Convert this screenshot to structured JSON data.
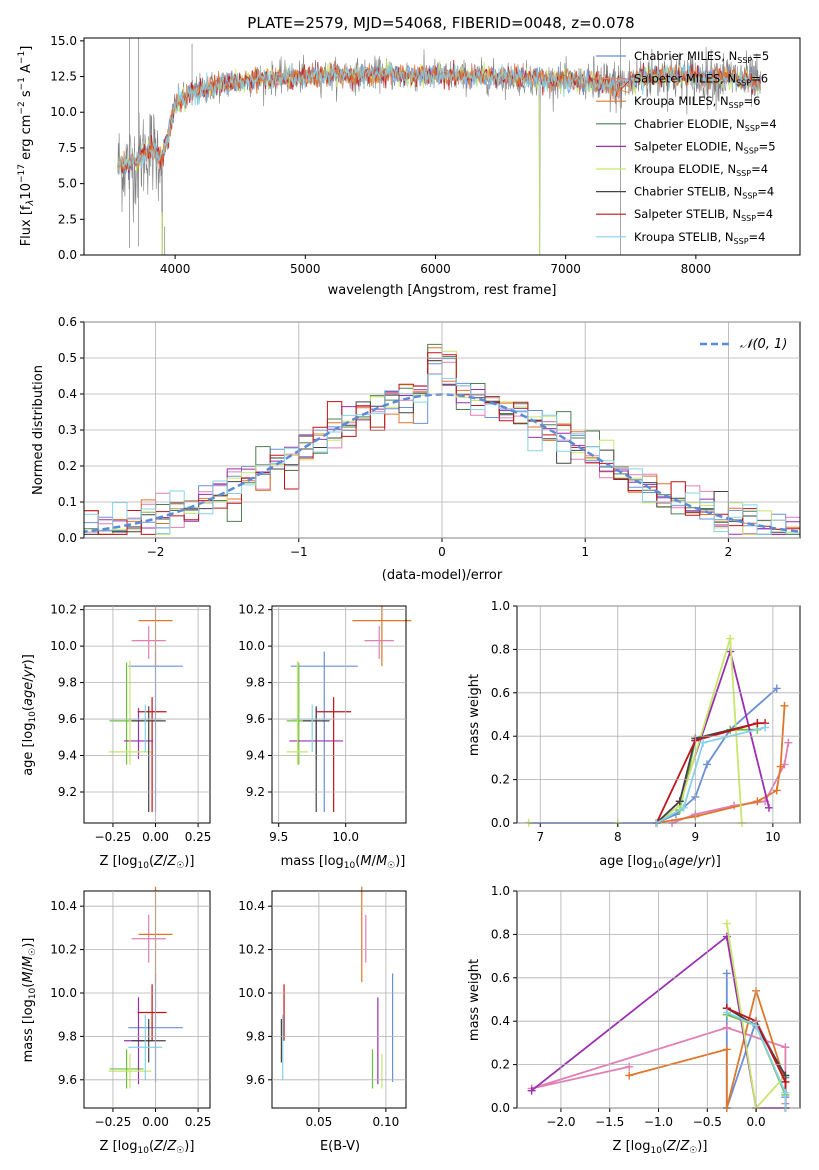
{
  "title": "PLATE=2579, MJD=54068, FIBERID=0048, z=0.078",
  "colors": {
    "chabrier_miles": "#6a8fd8",
    "salpeter_miles": "#e07f6a",
    "kroupa_miles": "#e0762a",
    "chabrier_elodie": "#4f7f52",
    "salpeter_elodie": "#9a2fb0",
    "kroupa_elodie": "#c8e66b",
    "chabrier_stelib": "#444444",
    "salpeter_stelib": "#c0141a",
    "kroupa_stelib": "#86d2e8",
    "pink": "#e07fb6",
    "green": "#6bbf3e",
    "data": "#7f7f7f",
    "gauss": "#5b8ad6",
    "grid": "#b0b0b0"
  },
  "chart_data": [
    {
      "id": "spectrum",
      "type": "line",
      "title": "PLATE=2579, MJD=54068, FIBERID=0048, z=0.078",
      "xlabel": "wavelength [Angstrom, rest frame]",
      "ylabel": "Flux [f_λ 10^-17 erg cm^-2 s^-1 A^-1]",
      "xlim": [
        3300,
        8800
      ],
      "ylim": [
        0,
        15.2
      ],
      "xticks": [
        "4000",
        "5000",
        "6000",
        "7000",
        "8000"
      ],
      "yticks": [
        "0.0",
        "2.5",
        "5.0",
        "7.5",
        "10.0",
        "12.5",
        "15.0"
      ],
      "grid": false,
      "legend_position": "right",
      "legend": [
        "Chabrier MILES, N_SSP=5",
        "Salpeter MILES, N_SSP=6",
        "Kroupa MILES, N_SSP=6",
        "Chabrier ELODIE, N_SSP=4",
        "Salpeter ELODIE, N_SSP=5",
        "Kroupa ELODIE, N_SSP=4",
        "Chabrier STELIB, N_SSP=4",
        "Salpeter STELIB, N_SSP=4",
        "Kroupa STELIB, N_SSP=4"
      ],
      "model_continuum": {
        "x": [
          3600,
          3700,
          3800,
          3900,
          3950,
          4000,
          4100,
          4200,
          4400,
          4600,
          4800,
          5000,
          5200,
          5400,
          5600,
          5800,
          6000,
          6200,
          6400,
          6600,
          6800,
          7000,
          7200,
          7400,
          7600,
          7800,
          8000,
          8200,
          8400,
          8500
        ],
        "y": [
          6.3,
          6.5,
          7.5,
          6.8,
          8.5,
          10.5,
          11.2,
          11.6,
          12.0,
          12.3,
          12.4,
          12.5,
          12.6,
          12.6,
          12.7,
          12.6,
          12.6,
          12.5,
          12.5,
          12.4,
          12.3,
          12.2,
          12.1,
          11.8,
          12.5,
          12.6,
          12.4,
          12.5,
          12.2,
          11.9
        ]
      }
    },
    {
      "id": "residuals",
      "type": "step",
      "xlabel": "(data-model)/error",
      "ylabel": "Normed distribution",
      "xlim": [
        -2.5,
        2.5
      ],
      "ylim": [
        0,
        0.6
      ],
      "xticks": [
        "−2",
        "−1",
        "0",
        "1",
        "2"
      ],
      "yticks": [
        "0.0",
        "0.1",
        "0.2",
        "0.3",
        "0.4",
        "0.5",
        "0.6"
      ],
      "grid": true,
      "legend": [
        "𝒩(0, 1)"
      ],
      "bin_width": 0.1
    },
    {
      "id": "age_vs_Z",
      "type": "errorbar",
      "xlabel": "Z [log10(Z/Z⊙)]",
      "ylabel": "age [log10(age/yr)]",
      "xticks": [
        "−0.25",
        "0.00",
        "0.25"
      ],
      "yticks": [
        "9.2",
        "9.4",
        "9.6",
        "9.8",
        "10.0",
        "10.2"
      ],
      "grid": true
    },
    {
      "id": "age_vs_mass",
      "type": "errorbar",
      "xlabel": "mass [log10(M/M⊙)]",
      "xticks": [
        "9.5",
        "10.0"
      ],
      "yticks": [
        "9.2",
        "9.4",
        "9.6",
        "9.8",
        "10.0",
        "10.2"
      ],
      "grid": true
    },
    {
      "id": "weight_vs_age",
      "type": "line",
      "xlabel": "age [log10(age/yr)]",
      "ylabel": "mass weight",
      "xlim": [
        6.7,
        10.35
      ],
      "ylim": [
        0,
        1
      ],
      "xticks": [
        "7",
        "8",
        "9",
        "10"
      ],
      "yticks": [
        "0.0",
        "0.2",
        "0.4",
        "0.6",
        "0.8",
        "1.0"
      ],
      "grid": true
    },
    {
      "id": "mass_vs_Z",
      "type": "errorbar",
      "xlabel": "Z [log10(Z/Z⊙)]",
      "ylabel": "mass [log10(M/M⊙)]",
      "xticks": [
        "−0.25",
        "0.00",
        "0.25"
      ],
      "yticks": [
        "9.6",
        "9.8",
        "10.0",
        "10.2",
        "10.4"
      ],
      "grid": true
    },
    {
      "id": "mass_vs_ebv",
      "type": "errorbar",
      "xlabel": "E(B-V)",
      "xticks": [
        "0.05",
        "0.10"
      ],
      "yticks": [
        "9.6",
        "9.8",
        "10.0",
        "10.2",
        "10.4"
      ],
      "grid": true
    },
    {
      "id": "weight_vs_Z",
      "type": "line",
      "xlabel": "Z [log10(Z/Z⊙)]",
      "ylabel": "mass weight",
      "xlim": [
        -2.45,
        0.45
      ],
      "ylim": [
        0,
        1
      ],
      "xticks": [
        "−2.0",
        "−1.5",
        "−1.0",
        "−0.5",
        "0.0"
      ],
      "yticks": [
        "0.0",
        "0.2",
        "0.4",
        "0.6",
        "0.8",
        "1.0"
      ],
      "grid": true
    }
  ],
  "fits": [
    {
      "key": "chabrier_miles",
      "Z": 0.0,
      "Zerr": 0.32,
      "age": 9.89,
      "ageerr_lo": 0.8,
      "ageerr_hi": 0.0,
      "mass": 9.84,
      "masserr": 0.25,
      "ebv": 0.105,
      "weights_age": [
        [
          8.5,
          0.0
        ],
        [
          8.75,
          0.04
        ],
        [
          9.0,
          0.12
        ],
        [
          9.15,
          0.27
        ],
        [
          9.45,
          0.43
        ],
        [
          10.05,
          0.62
        ]
      ],
      "weights_Z": [
        [
          -0.3,
          0.62
        ],
        [
          -0.3,
          0.0
        ],
        [
          0.0,
          0.4
        ],
        [
          0.3,
          0.14
        ],
        [
          0.3,
          0.05
        ]
      ]
    },
    {
      "key": "salpeter_miles",
      "Z": -0.04,
      "Zerr": 0.2,
      "age": 10.03,
      "ageerr_lo": 0.1,
      "ageerr_hi": 0.0,
      "mass": 10.25,
      "masserr": 0.11,
      "ebv": 0.085,
      "weights_age": [
        [
          8.7,
          0.0
        ],
        [
          9.0,
          0.04
        ],
        [
          9.5,
          0.08
        ],
        [
          9.9,
          0.1
        ],
        [
          10.15,
          0.27
        ],
        [
          10.2,
          0.37
        ]
      ],
      "weights_Z": [
        [
          -1.3,
          0.19
        ],
        [
          -2.3,
          0.09
        ],
        [
          -0.3,
          0.37
        ],
        [
          0.3,
          0.28
        ],
        [
          0.3,
          0.02
        ]
      ]
    },
    {
      "key": "kroupa_miles",
      "Z": 0.0,
      "Zerr": 0.2,
      "age": 10.14,
      "ageerr_lo": 0.25,
      "ageerr_hi": 0.0,
      "mass": 10.27,
      "masserr": 0.22,
      "ebv": 0.082,
      "weights_age": [
        [
          8.5,
          0.0
        ],
        [
          9.0,
          0.03
        ],
        [
          9.8,
          0.1
        ],
        [
          10.05,
          0.15
        ],
        [
          10.1,
          0.26
        ],
        [
          10.15,
          0.54
        ]
      ],
      "weights_Z": [
        [
          -1.3,
          0.15
        ],
        [
          -0.3,
          0.27
        ],
        [
          -0.3,
          0.0
        ],
        [
          0.0,
          0.54
        ],
        [
          0.3,
          0.12
        ]
      ]
    },
    {
      "key": "chabrier_elodie",
      "Z": -0.17,
      "Zerr": 0.2,
      "age": 9.59,
      "ageerr_lo": 0.24,
      "ageerr_hi": 0.24,
      "mass": 9.65,
      "masserr": 0.09,
      "ebv": 0.09,
      "weights_age": [
        [
          8.5,
          0.0
        ],
        [
          8.8,
          0.06
        ],
        [
          9.0,
          0.38
        ],
        [
          9.45,
          0.43
        ],
        [
          9.8,
          0.43
        ]
      ],
      "weights_Z": [
        [
          -0.3,
          0.43
        ],
        [
          0.0,
          0.38
        ],
        [
          0.3,
          0.06
        ],
        [
          0.3,
          0.0
        ]
      ]
    },
    {
      "key": "salpeter_elodie",
      "Z": -0.1,
      "Zerr": 0.17,
      "age": 9.48,
      "ageerr_lo": 0.1,
      "ageerr_hi": 0.1,
      "mass": 9.78,
      "masserr": 0.2,
      "ebv": 0.094,
      "weights_age": [
        [
          8.5,
          0.0
        ],
        [
          8.8,
          0.1
        ],
        [
          9.45,
          0.79
        ],
        [
          9.95,
          0.07
        ]
      ],
      "weights_Z": [
        [
          -2.3,
          0.08
        ],
        [
          -0.3,
          0.79
        ],
        [
          0.0,
          0.0
        ],
        [
          0.3,
          0.0
        ]
      ]
    },
    {
      "key": "kroupa_elodie",
      "Z": -0.15,
      "Zerr": 0.25,
      "age": 9.42,
      "ageerr_lo": 0.07,
      "ageerr_hi": 0.42,
      "mass": 9.64,
      "masserr": 0.08,
      "ebv": 0.097,
      "weights_age": [
        [
          8.5,
          0.0
        ],
        [
          8.8,
          0.08
        ],
        [
          9.45,
          0.85
        ],
        [
          9.6,
          0.0
        ]
      ],
      "weights_Z": [
        [
          -0.3,
          0.85
        ],
        [
          0.0,
          0.0
        ],
        [
          0.3,
          0.15
        ]
      ]
    },
    {
      "key": "chabrier_stelib",
      "Z": -0.04,
      "Zerr": 0.2,
      "age": 9.59,
      "ageerr_lo": 0.5,
      "ageerr_hi": 0.0,
      "mass": 9.78,
      "masserr": 0.1,
      "ebv": 0.022,
      "weights_age": [
        [
          8.5,
          0.0
        ],
        [
          8.8,
          0.1
        ],
        [
          9.0,
          0.39
        ],
        [
          9.8,
          0.46
        ]
      ],
      "weights_Z": [
        [
          -0.3,
          0.46
        ],
        [
          0.0,
          0.38
        ],
        [
          0.3,
          0.15
        ],
        [
          0.3,
          0.0
        ]
      ]
    },
    {
      "key": "salpeter_stelib",
      "Z": -0.02,
      "Zerr": 0.17,
      "age": 9.64,
      "ageerr_lo": 0.55,
      "ageerr_hi": 0.0,
      "mass": 9.91,
      "masserr": 0.13,
      "ebv": 0.024,
      "weights_age": [
        [
          8.5,
          0.0
        ],
        [
          9.0,
          0.38
        ],
        [
          9.8,
          0.46
        ],
        [
          9.9,
          0.46
        ]
      ],
      "weights_Z": [
        [
          -0.3,
          0.46
        ],
        [
          0.0,
          0.4
        ],
        [
          0.3,
          0.12
        ],
        [
          0.3,
          0.0
        ]
      ]
    },
    {
      "key": "kroupa_stelib",
      "Z": -0.06,
      "Zerr": 0.2,
      "age": 9.6,
      "ageerr_lo": 0.18,
      "ageerr_hi": 0.0,
      "mass": 9.75,
      "masserr": 0.15,
      "ebv": 0.023,
      "weights_age": [
        [
          8.5,
          0.0
        ],
        [
          8.85,
          0.07
        ],
        [
          9.1,
          0.37
        ],
        [
          9.9,
          0.44
        ]
      ],
      "weights_Z": [
        [
          -0.3,
          0.44
        ],
        [
          0.0,
          0.38
        ],
        [
          0.3,
          0.07
        ],
        [
          0.3,
          0.0
        ]
      ]
    }
  ]
}
